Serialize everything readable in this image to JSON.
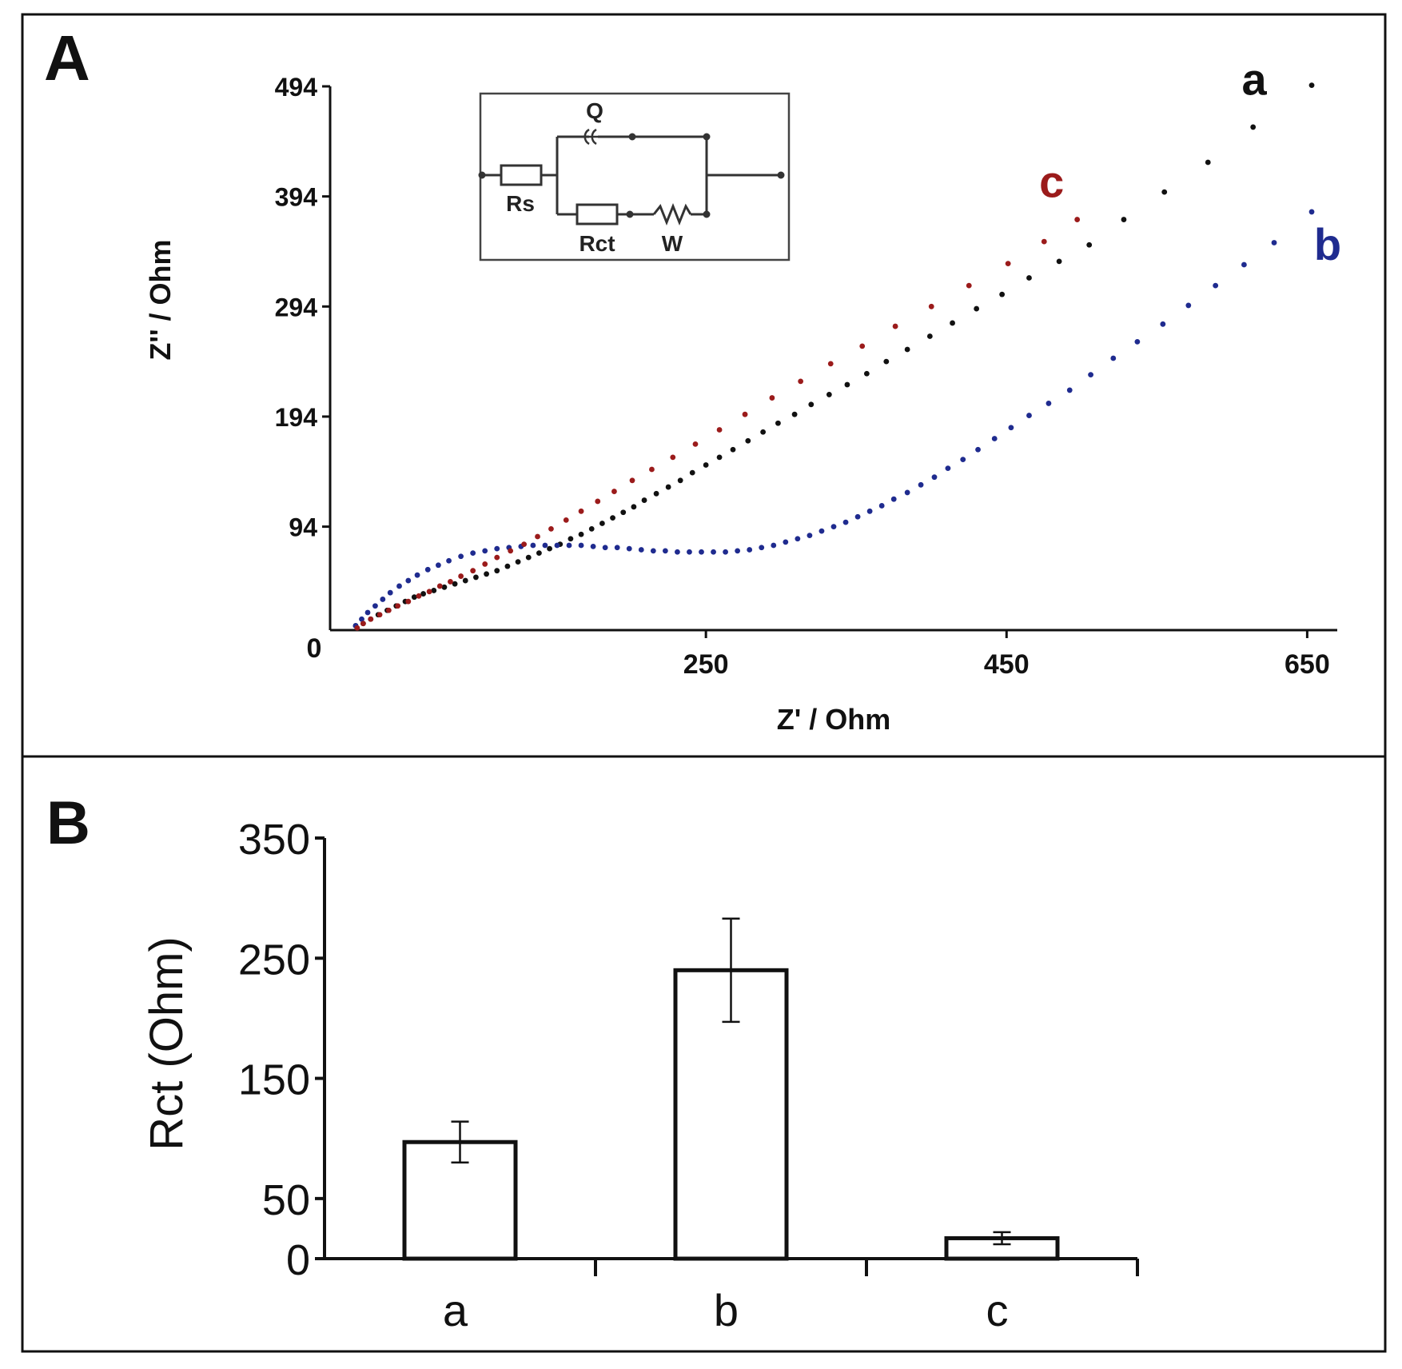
{
  "chart_data": [
    {
      "panel_label": "A",
      "type": "scatter",
      "xlabel": "Z' / Ohm",
      "ylabel": "Z'' / Ohm",
      "xlim": [
        0,
        670
      ],
      "ylim": [
        0,
        494
      ],
      "x_ticks": [
        250,
        450,
        650
      ],
      "y_ticks": [
        94,
        194,
        294,
        394,
        494
      ],
      "origin_label": "0",
      "inset_circuit": {
        "labels": {
          "q": "Q",
          "rs": "Rs",
          "rct": "Rct",
          "w": "W"
        }
      },
      "series": [
        {
          "name": "a",
          "color": "#111111",
          "points": [
            [
              17,
              4
            ],
            [
              22,
              6
            ],
            [
              27,
              10
            ],
            [
              32,
              14
            ],
            [
              38,
              18
            ],
            [
              44,
              22
            ],
            [
              50,
              26
            ],
            [
              56,
              30
            ],
            [
              62,
              33
            ],
            [
              69,
              36
            ],
            [
              76,
              39
            ],
            [
              83,
              42
            ],
            [
              90,
              45
            ],
            [
              97,
              48
            ],
            [
              104,
              51
            ],
            [
              111,
              54
            ],
            [
              118,
              58
            ],
            [
              125,
              62
            ],
            [
              132,
              66
            ],
            [
              139,
              70
            ],
            [
              146,
              74
            ],
            [
              153,
              78
            ],
            [
              160,
              83
            ],
            [
              167,
              87
            ],
            [
              174,
              92
            ],
            [
              181,
              97
            ],
            [
              188,
              102
            ],
            [
              195,
              107
            ],
            [
              202,
              112
            ],
            [
              209,
              118
            ],
            [
              217,
              124
            ],
            [
              225,
              130
            ],
            [
              233,
              136
            ],
            [
              241,
              143
            ],
            [
              250,
              150
            ],
            [
              259,
              157
            ],
            [
              268,
              164
            ],
            [
              278,
              172
            ],
            [
              288,
              180
            ],
            [
              298,
              188
            ],
            [
              309,
              196
            ],
            [
              320,
              205
            ],
            [
              332,
              214
            ],
            [
              344,
              223
            ],
            [
              357,
              233
            ],
            [
              370,
              244
            ],
            [
              384,
              255
            ],
            [
              399,
              267
            ],
            [
              414,
              279
            ],
            [
              430,
              292
            ],
            [
              447,
              305
            ],
            [
              465,
              320
            ],
            [
              485,
              335
            ],
            [
              505,
              350
            ],
            [
              528,
              373
            ],
            [
              555,
              398
            ],
            [
              584,
              425
            ],
            [
              614,
              457
            ],
            [
              653,
              495
            ]
          ]
        },
        {
          "name": "b",
          "color": "#1f2b8f",
          "points": [
            [
              17,
              4
            ],
            [
              21,
              10
            ],
            [
              25,
              16
            ],
            [
              30,
              22
            ],
            [
              35,
              28
            ],
            [
              40,
              34
            ],
            [
              46,
              40
            ],
            [
              52,
              45
            ],
            [
              58,
              50
            ],
            [
              65,
              55
            ],
            [
              72,
              59
            ],
            [
              79,
              63
            ],
            [
              87,
              67
            ],
            [
              95,
              70
            ],
            [
              103,
              72
            ],
            [
              111,
              74
            ],
            [
              119,
              75
            ],
            [
              127,
              76
            ],
            [
              135,
              77
            ],
            [
              143,
              77
            ],
            [
              151,
              77
            ],
            [
              159,
              77
            ],
            [
              167,
              77
            ],
            [
              175,
              76
            ],
            [
              183,
              75
            ],
            [
              191,
              75
            ],
            [
              199,
              74
            ],
            [
              207,
              73
            ],
            [
              215,
              72
            ],
            [
              223,
              72
            ],
            [
              231,
              71
            ],
            [
              239,
              71
            ],
            [
              247,
              71
            ],
            [
              255,
              71
            ],
            [
              263,
              71
            ],
            [
              271,
              72
            ],
            [
              279,
              73
            ],
            [
              287,
              75
            ],
            [
              295,
              77
            ],
            [
              303,
              80
            ],
            [
              311,
              83
            ],
            [
              319,
              86
            ],
            [
              327,
              90
            ],
            [
              335,
              94
            ],
            [
              343,
              98
            ],
            [
              351,
              103
            ],
            [
              359,
              108
            ],
            [
              367,
              113
            ],
            [
              375,
              119
            ],
            [
              384,
              125
            ],
            [
              393,
              132
            ],
            [
              402,
              139
            ],
            [
              411,
              147
            ],
            [
              421,
              155
            ],
            [
              431,
              164
            ],
            [
              442,
              174
            ],
            [
              453,
              184
            ],
            [
              465,
              195
            ],
            [
              478,
              206
            ],
            [
              492,
              218
            ],
            [
              506,
              232
            ],
            [
              521,
              247
            ],
            [
              537,
              262
            ],
            [
              554,
              278
            ],
            [
              571,
              295
            ],
            [
              589,
              313
            ],
            [
              608,
              332
            ],
            [
              628,
              352
            ],
            [
              653,
              380
            ]
          ]
        },
        {
          "name": "c",
          "color": "#9b1b1b",
          "points": [
            [
              18,
              2
            ],
            [
              22,
              6
            ],
            [
              27,
              10
            ],
            [
              33,
              14
            ],
            [
              39,
              18
            ],
            [
              45,
              22
            ],
            [
              52,
              26
            ],
            [
              59,
              31
            ],
            [
              66,
              35
            ],
            [
              73,
              40
            ],
            [
              80,
              44
            ],
            [
              87,
              49
            ],
            [
              95,
              54
            ],
            [
              103,
              60
            ],
            [
              111,
              66
            ],
            [
              120,
              72
            ],
            [
              129,
              78
            ],
            [
              138,
              85
            ],
            [
              147,
              92
            ],
            [
              157,
              100
            ],
            [
              167,
              108
            ],
            [
              178,
              117
            ],
            [
              189,
              126
            ],
            [
              201,
              136
            ],
            [
              214,
              146
            ],
            [
              228,
              157
            ],
            [
              243,
              169
            ],
            [
              259,
              182
            ],
            [
              276,
              196
            ],
            [
              294,
              211
            ],
            [
              313,
              226
            ],
            [
              333,
              242
            ],
            [
              354,
              258
            ],
            [
              376,
              276
            ],
            [
              400,
              294
            ],
            [
              425,
              313
            ],
            [
              451,
              333
            ],
            [
              475,
              353
            ],
            [
              497,
              373
            ]
          ]
        }
      ]
    },
    {
      "panel_label": "B",
      "type": "bar",
      "categories": [
        "a",
        "b",
        "c"
      ],
      "values": [
        97,
        240,
        17
      ],
      "errors": [
        17,
        43,
        5
      ],
      "ylabel": "Rct (Ohm)",
      "ylim": [
        0,
        350
      ],
      "y_ticks": [
        0,
        50,
        150,
        250,
        350
      ],
      "bar_fill": "#ffffff",
      "bar_stroke": "#111111"
    }
  ]
}
